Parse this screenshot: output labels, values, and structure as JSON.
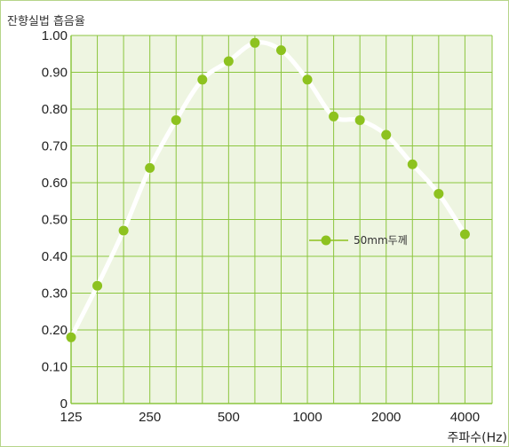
{
  "chart_data": {
    "type": "line",
    "title": "잔향실법 흡음율",
    "xlabel": "주파수(Hz)",
    "ylabel": "",
    "ylim": [
      0,
      1.0
    ],
    "y_ticks": [
      "0",
      "0.10",
      "0.20",
      "0.30",
      "0.40",
      "0.50",
      "0.60",
      "0.70",
      "0.80",
      "0.90",
      "1.00"
    ],
    "x": [
      "125",
      "160",
      "200",
      "250",
      "315",
      "400",
      "500",
      "630",
      "800",
      "1000",
      "1250",
      "1600",
      "2000",
      "2500",
      "3150",
      "4000"
    ],
    "x_tick_labels": [
      {
        "x": "125",
        "label": "125"
      },
      {
        "x": "250",
        "label": "250"
      },
      {
        "x": "500",
        "label": "500"
      },
      {
        "x": "1000",
        "label": "1000"
      },
      {
        "x": "2000",
        "label": "2000"
      },
      {
        "x": "4000",
        "label": "4000"
      }
    ],
    "series": [
      {
        "name": "50mm두께",
        "values": [
          0.18,
          0.32,
          0.47,
          0.64,
          0.77,
          0.88,
          0.93,
          0.98,
          0.96,
          0.88,
          0.78,
          0.77,
          0.73,
          0.65,
          0.57,
          0.46
        ]
      }
    ],
    "grid": true,
    "legend_position": "center-right",
    "colors": {
      "plot_bg": "#eef5e1",
      "grid": "#8cc63f",
      "line": "#ffffff",
      "marker": "#8dc21f",
      "frame": "#b6d58a"
    }
  }
}
